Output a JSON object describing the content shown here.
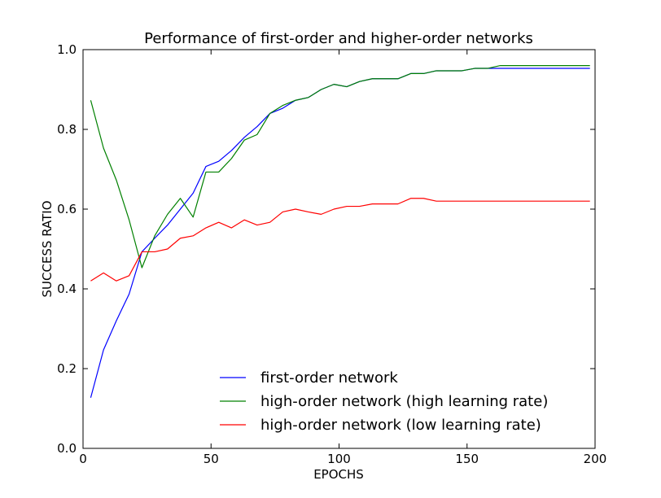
{
  "chart_data": {
    "type": "line",
    "title": "Performance of first-order and higher-order networks",
    "xlabel": "EPOCHS",
    "ylabel": "SUCCESS RATIO",
    "xlim": [
      0,
      200
    ],
    "ylim": [
      0.0,
      1.0
    ],
    "xticks": [
      0,
      50,
      100,
      150,
      200
    ],
    "yticks": [
      0.0,
      0.2,
      0.4,
      0.6,
      0.8,
      1.0
    ],
    "xtick_labels": [
      "0",
      "50",
      "100",
      "150",
      "200"
    ],
    "ytick_labels": [
      "0.0",
      "0.2",
      "0.4",
      "0.6",
      "0.8",
      "1.0"
    ],
    "grid": false,
    "legend_position": "lower-center",
    "x": [
      3,
      8,
      13,
      18,
      23,
      28,
      33,
      38,
      43,
      48,
      53,
      58,
      63,
      68,
      73,
      78,
      83,
      88,
      93,
      98,
      103,
      108,
      113,
      118,
      123,
      128,
      133,
      138,
      143,
      148,
      153,
      158,
      163,
      168,
      173,
      178,
      183,
      188,
      193,
      198
    ],
    "series": [
      {
        "name": "first-order network",
        "color": "#0000ff",
        "values": [
          0.127,
          0.247,
          0.32,
          0.387,
          0.493,
          0.527,
          0.56,
          0.6,
          0.64,
          0.707,
          0.72,
          0.747,
          0.78,
          0.807,
          0.84,
          0.853,
          0.873,
          0.88,
          0.9,
          0.913,
          0.907,
          0.92,
          0.927,
          0.927,
          0.927,
          0.94,
          0.94,
          0.947,
          0.947,
          0.947,
          0.953,
          0.953,
          0.953,
          0.953,
          0.953,
          0.953,
          0.953,
          0.953,
          0.953,
          0.953
        ]
      },
      {
        "name": "high-order network (high learning rate)",
        "color": "#008000",
        "values": [
          0.873,
          0.753,
          0.673,
          0.573,
          0.453,
          0.533,
          0.587,
          0.627,
          0.58,
          0.693,
          0.693,
          0.727,
          0.773,
          0.787,
          0.84,
          0.86,
          0.873,
          0.88,
          0.9,
          0.913,
          0.907,
          0.92,
          0.927,
          0.927,
          0.927,
          0.94,
          0.94,
          0.947,
          0.947,
          0.947,
          0.953,
          0.953,
          0.96,
          0.96,
          0.96,
          0.96,
          0.96,
          0.96,
          0.96,
          0.96
        ]
      },
      {
        "name": "high-order network (low learning rate)",
        "color": "#ff0000",
        "values": [
          0.42,
          0.44,
          0.42,
          0.433,
          0.493,
          0.493,
          0.5,
          0.527,
          0.533,
          0.553,
          0.567,
          0.553,
          0.573,
          0.56,
          0.567,
          0.593,
          0.6,
          0.593,
          0.587,
          0.6,
          0.607,
          0.607,
          0.613,
          0.613,
          0.613,
          0.627,
          0.627,
          0.62,
          0.62,
          0.62,
          0.62,
          0.62,
          0.62,
          0.62,
          0.62,
          0.62,
          0.62,
          0.62,
          0.62,
          0.62
        ]
      }
    ]
  }
}
